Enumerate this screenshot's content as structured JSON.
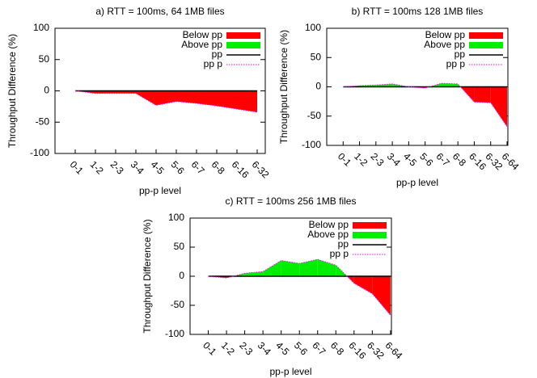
{
  "chart_data": [
    {
      "type": "area",
      "title": "a) RTT = 100ms, 64  1MB files",
      "xlabel": "pp-p level",
      "ylabel": "Throughput Difference (%)",
      "categories": [
        "0-1",
        "1-2",
        "2-3",
        "3-4",
        "4-5",
        "5-6",
        "6-7",
        "6-8",
        "6-16",
        "6-32"
      ],
      "fills": [
        {
          "name": "Below pp",
          "color": "#ff0000"
        },
        {
          "name": "Above pp",
          "color": "#00ee00"
        }
      ],
      "series": [
        {
          "name": "pp",
          "color": "#000000",
          "values": [
            0,
            0,
            0,
            0,
            0,
            0,
            0,
            0,
            0,
            0
          ]
        },
        {
          "name": "pp p",
          "color": "#ff00ff",
          "values": [
            0,
            -4,
            -4,
            -4,
            -23,
            -17,
            -20,
            -24,
            -29,
            -34
          ]
        }
      ],
      "ylim": [
        -100,
        100
      ],
      "yticks": [
        -100,
        -50,
        0,
        50,
        100
      ],
      "legend": "top right"
    },
    {
      "type": "area",
      "title": "b) RTT = 100ms 128 1MB files",
      "xlabel": "pp-p level",
      "ylabel": "Throughput Difference (%)",
      "categories": [
        "0-1",
        "1-2",
        "2-3",
        "3-4",
        "4-5",
        "5-6",
        "6-7",
        "6-8",
        "6-16",
        "6-32",
        "6-64"
      ],
      "fills": [
        {
          "name": "Below pp",
          "color": "#ff0000"
        },
        {
          "name": "Above pp",
          "color": "#00ee00"
        }
      ],
      "series": [
        {
          "name": "pp",
          "color": "#000000",
          "values": [
            0,
            0,
            0,
            0,
            0,
            0,
            0,
            0,
            0,
            0,
            0
          ]
        },
        {
          "name": "pp p",
          "color": "#ff00ff",
          "values": [
            0,
            2,
            3,
            5,
            0,
            -2,
            6,
            5,
            -26,
            -27,
            -68
          ]
        }
      ],
      "ylim": [
        -100,
        100
      ],
      "yticks": [
        -100,
        -50,
        0,
        50,
        100
      ],
      "legend": "top right"
    },
    {
      "type": "area",
      "title": "c) RTT = 100ms 256 1MB files",
      "xlabel": "pp-p level",
      "ylabel": "Throughput Difference (%)",
      "categories": [
        "0-1",
        "1-2",
        "2-3",
        "3-4",
        "4-5",
        "5-6",
        "6-7",
        "6-8",
        "6-16",
        "6-32",
        "6-64"
      ],
      "fills": [
        {
          "name": "Below pp",
          "color": "#ff0000"
        },
        {
          "name": "Above pp",
          "color": "#00ee00"
        }
      ],
      "series": [
        {
          "name": "pp",
          "color": "#000000",
          "values": [
            0,
            0,
            0,
            0,
            0,
            0,
            0,
            0,
            0,
            0,
            0
          ]
        },
        {
          "name": "pp p",
          "color": "#ff00ff",
          "values": [
            0,
            -3,
            5,
            8,
            27,
            22,
            29,
            19,
            -12,
            -30,
            -67
          ]
        }
      ],
      "ylim": [
        -100,
        100
      ],
      "yticks": [
        -100,
        -50,
        0,
        50,
        100
      ],
      "legend": "top right"
    }
  ]
}
